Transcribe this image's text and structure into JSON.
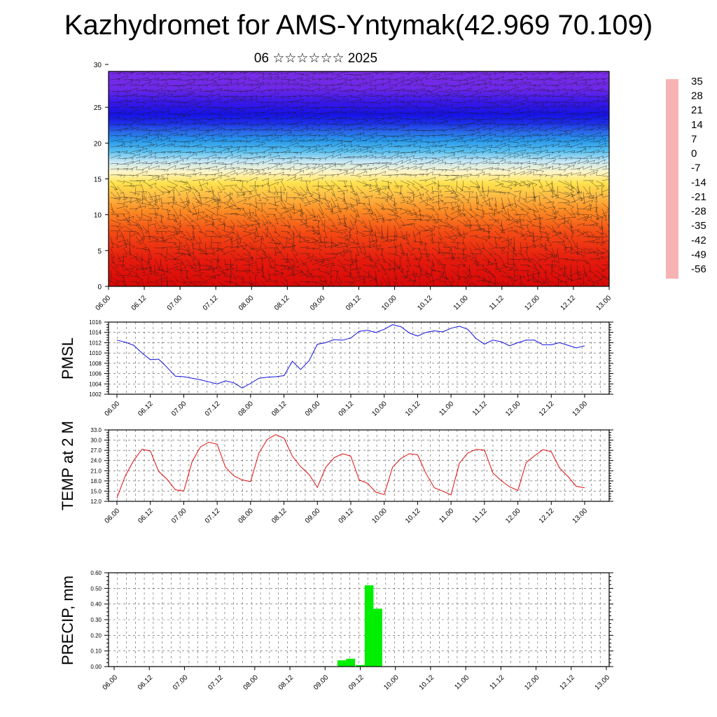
{
  "title": "Kazhydromet for AMS-Yntymak(42.969 70.109)",
  "subtitle": "06 ☆☆☆☆☆☆ 2025",
  "time_ticks": [
    "06.00",
    "06.12",
    "07.00",
    "07.12",
    "08.00",
    "08.12",
    "09.00",
    "09.12",
    "10.00",
    "10.12",
    "11.00",
    "11.12",
    "12.00",
    "12.12",
    "13.00"
  ],
  "chart_data": [
    {
      "type": "heatmap",
      "name": "temperature-wind-cross-section",
      "yticks": [
        "0",
        "5",
        "10",
        "15",
        "20",
        "25",
        "30"
      ],
      "ylim": [
        0,
        30
      ],
      "colorbar": {
        "labels": [
          "35",
          "28",
          "21",
          "14",
          "7",
          "0",
          "-7",
          "-14",
          "-21",
          "-28",
          "-35",
          "-42",
          "-49",
          "-56"
        ],
        "range": [
          -63,
          42
        ]
      },
      "color_stops": [
        {
          "value": 42,
          "color": "#f7b3b3"
        },
        {
          "value": 35,
          "color": "#e81818"
        },
        {
          "value": 21,
          "color": "#e40d0d"
        },
        {
          "value": 14,
          "color": "#f23b12"
        },
        {
          "value": 7,
          "color": "#fb7d1f"
        },
        {
          "value": 0,
          "color": "#fdb342"
        },
        {
          "value": -7,
          "color": "#ffe14a"
        },
        {
          "value": -14,
          "color": "#fff6c6"
        },
        {
          "value": -21,
          "color": "#bfe3f3"
        },
        {
          "value": -28,
          "color": "#47b9f0"
        },
        {
          "value": -35,
          "color": "#1f8de9"
        },
        {
          "value": -42,
          "color": "#2858e8"
        },
        {
          "value": -49,
          "color": "#1a1be8"
        },
        {
          "value": -56,
          "color": "#3510ea"
        },
        {
          "value": -63,
          "color": "#7c2ae8"
        }
      ]
    },
    {
      "type": "line",
      "name": "pmsl",
      "ylabel": "PMSL",
      "ylim": [
        1002,
        1016
      ],
      "yticks": [
        "1016",
        "1014",
        "1012",
        "1010",
        "1008",
        "1006",
        "1004",
        "1002"
      ],
      "color": "#1010e0",
      "values": [
        1012.5,
        1012.1,
        1011.5,
        1010.0,
        1008.7,
        1008.8,
        1007.2,
        1005.5,
        1005.4,
        1005.1,
        1004.8,
        1004.4,
        1004.0,
        1004.6,
        1004.2,
        1003.2,
        1004.1,
        1005.1,
        1005.3,
        1005.4,
        1005.6,
        1008.4,
        1006.8,
        1008.5,
        1011.7,
        1012.0,
        1012.6,
        1012.5,
        1012.9,
        1014.2,
        1014.4,
        1014.0,
        1014.6,
        1015.5,
        1015.1,
        1013.9,
        1013.3,
        1014.0,
        1014.3,
        1014.1,
        1014.8,
        1015.2,
        1014.6,
        1012.8,
        1011.7,
        1012.5,
        1012.2,
        1011.4,
        1012.0,
        1012.5,
        1012.5,
        1011.6,
        1011.6,
        1012.0,
        1011.5,
        1011.0,
        1011.4
      ]
    },
    {
      "type": "line",
      "name": "temperature-2m",
      "ylabel": "TEMP at 2 M",
      "ylim": [
        12.0,
        33.0
      ],
      "yticks": [
        "33.0",
        "30.0",
        "27.0",
        "24.0",
        "21.0",
        "18.0",
        "15.0",
        "12.0"
      ],
      "color": "#e01010",
      "values": [
        13.0,
        19.5,
        24.0,
        27.3,
        26.8,
        20.8,
        18.5,
        15.4,
        15.0,
        23.7,
        28.0,
        29.4,
        28.8,
        22.0,
        19.5,
        18.3,
        17.8,
        26.2,
        30.2,
        31.6,
        30.6,
        25.3,
        22.2,
        19.9,
        16.1,
        22.0,
        24.8,
        26.0,
        25.3,
        18.3,
        17.3,
        14.7,
        14.0,
        22.0,
        24.6,
        26.0,
        25.7,
        20.2,
        16.0,
        15.0,
        13.9,
        23.2,
        26.2,
        27.3,
        27.1,
        20.4,
        18.1,
        16.3,
        15.2,
        23.4,
        25.4,
        27.2,
        26.6,
        21.8,
        19.3,
        16.4,
        16.0
      ]
    },
    {
      "type": "bar",
      "name": "precipitation",
      "ylabel": "PRECIP, mm",
      "ylim": [
        0,
        0.6
      ],
      "yticks": [
        "0.60",
        "0.50",
        "0.40",
        "0.30",
        "0.20",
        "0.10",
        "0.00"
      ],
      "color": "#00ee00",
      "bars": [
        {
          "x": 25.9,
          "value": 0.04
        },
        {
          "x": 26.9,
          "value": 0.05
        },
        {
          "x": 28.0,
          "value": 0.01
        },
        {
          "x": 29.0,
          "value": 0.52
        },
        {
          "x": 30.0,
          "value": 0.37
        }
      ]
    }
  ]
}
